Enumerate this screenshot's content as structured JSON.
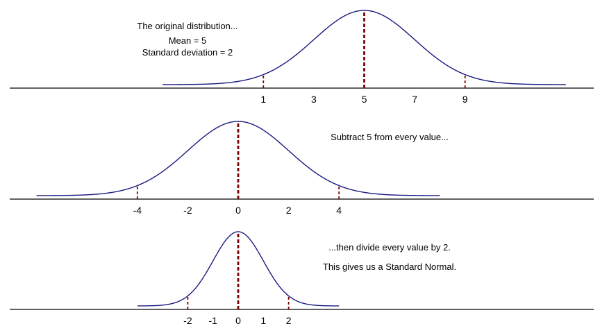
{
  "colors": {
    "curve": "#1a1a80",
    "marker": "#7a0000",
    "axis": "#000000"
  },
  "chart_data": [
    {
      "type": "line",
      "distribution": "normal",
      "mean": 5,
      "sd": 2,
      "xlim": [
        -3,
        13
      ],
      "axis_span": [
        -4,
        14.3
      ],
      "ticks": [
        1,
        3,
        5,
        7,
        9
      ],
      "dashed_markers": [
        1,
        5,
        9
      ],
      "notes": [
        "The original distribution...",
        "Mean = 5",
        "Standard deviation = 2"
      ]
    },
    {
      "type": "line",
      "distribution": "normal",
      "mean": 0,
      "sd": 2,
      "xlim": [
        -8,
        8
      ],
      "axis_span": [
        -9,
        9.3
      ],
      "ticks": [
        -4,
        -2,
        0,
        2,
        4
      ],
      "dashed_markers": [
        -4,
        0,
        4
      ],
      "notes": [
        "Subtract 5 from every value..."
      ]
    },
    {
      "type": "line",
      "distribution": "normal",
      "mean": 0,
      "sd": 1,
      "xlim": [
        -4,
        4
      ],
      "axis_span": [
        -9,
        9.3
      ],
      "ticks": [
        -2,
        -1,
        0,
        1,
        2
      ],
      "dashed_markers": [
        -2,
        0,
        2
      ],
      "notes": [
        "...then divide every value by 2.",
        "This gives us a Standard Normal."
      ]
    }
  ]
}
